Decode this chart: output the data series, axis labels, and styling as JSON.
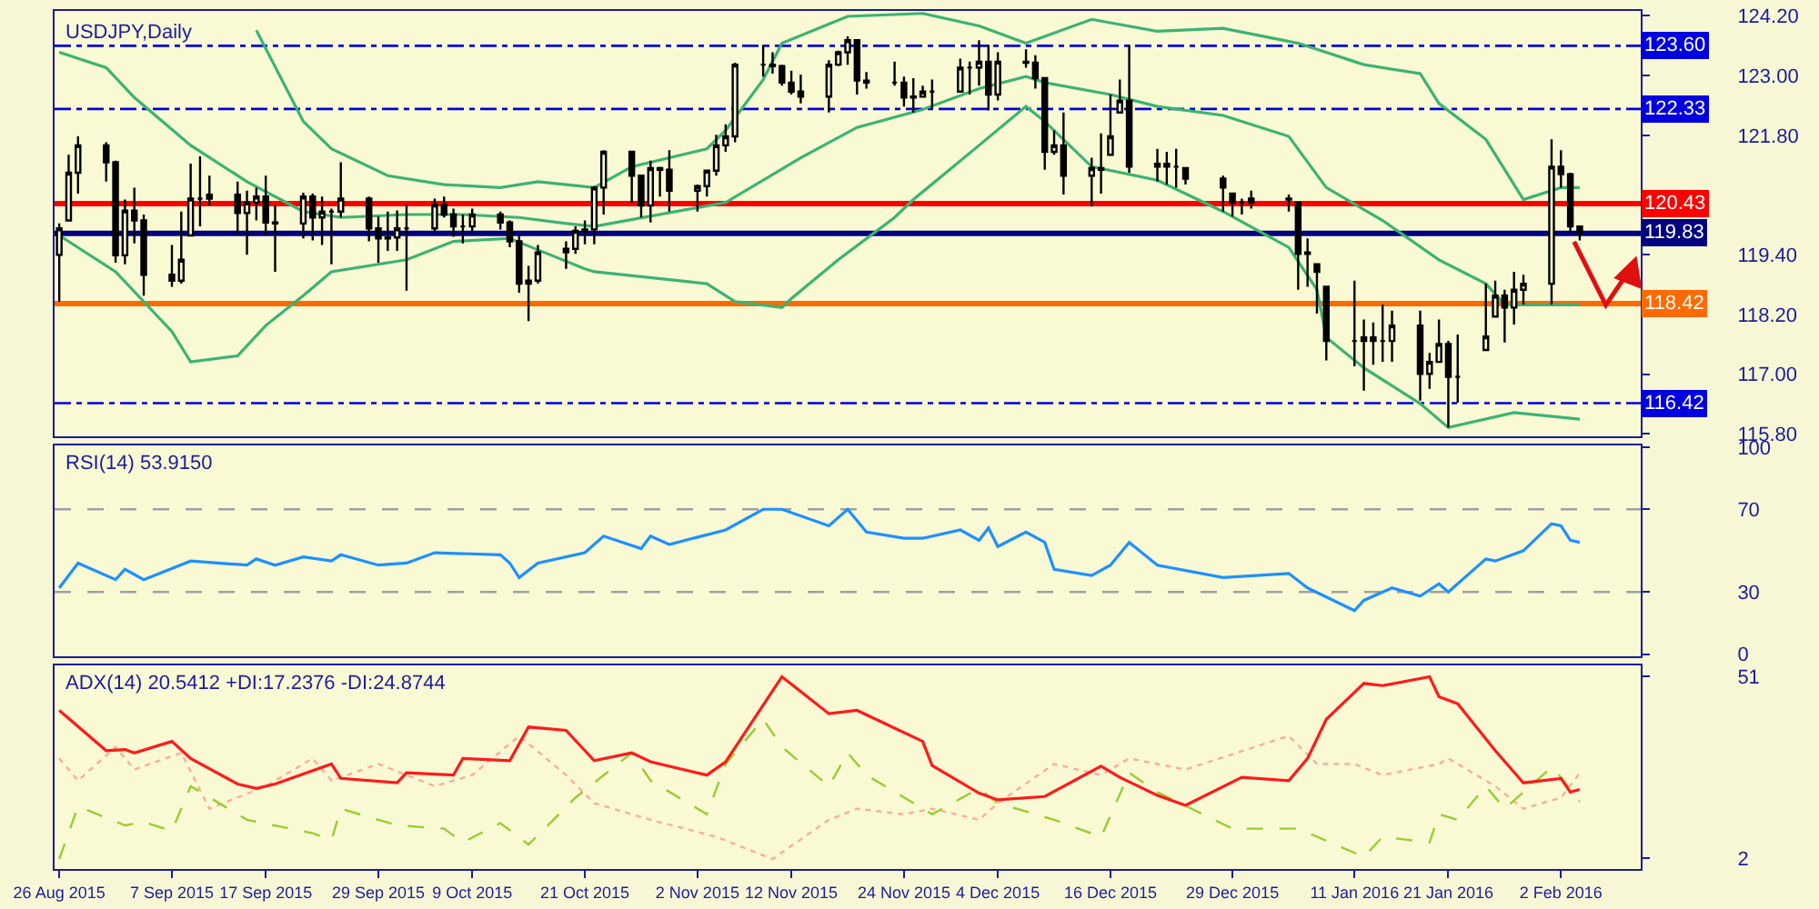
{
  "chart_data": [
    {
      "type": "candlestick",
      "title": "USDJPY,Daily",
      "color": "#000000",
      "x": [
        "2015-08-26",
        "2015-08-27",
        "2015-08-28",
        "2015-08-31",
        "2015-09-01",
        "2015-09-02",
        "2015-09-03",
        "2015-09-04",
        "2015-09-07",
        "2015-09-08",
        "2015-09-09",
        "2015-09-10",
        "2015-09-11",
        "2015-09-14",
        "2015-09-15",
        "2015-09-16",
        "2015-09-17",
        "2015-09-18",
        "2015-09-21",
        "2015-09-22",
        "2015-09-23",
        "2015-09-24",
        "2015-09-25",
        "2015-09-28",
        "2015-09-29",
        "2015-09-30",
        "2015-10-01",
        "2015-10-02",
        "2015-10-05",
        "2015-10-06",
        "2015-10-07",
        "2015-10-08",
        "2015-10-09",
        "2015-10-12",
        "2015-10-13",
        "2015-10-14",
        "2015-10-15",
        "2015-10-16",
        "2015-10-19",
        "2015-10-20",
        "2015-10-21",
        "2015-10-22",
        "2015-10-23",
        "2015-10-26",
        "2015-10-27",
        "2015-10-28",
        "2015-10-29",
        "2015-10-30",
        "2015-11-02",
        "2015-11-03",
        "2015-11-04",
        "2015-11-05",
        "2015-11-06",
        "2015-11-09",
        "2015-11-10",
        "2015-11-11",
        "2015-11-12",
        "2015-11-13",
        "2015-11-16",
        "2015-11-17",
        "2015-11-18",
        "2015-11-19",
        "2015-11-20",
        "2015-11-23",
        "2015-11-24",
        "2015-11-25",
        "2015-11-26",
        "2015-11-27",
        "2015-11-30",
        "2015-12-01",
        "2015-12-02",
        "2015-12-03",
        "2015-12-04",
        "2015-12-07",
        "2015-12-08",
        "2015-12-09",
        "2015-12-10",
        "2015-12-11",
        "2015-12-14",
        "2015-12-15",
        "2015-12-16",
        "2015-12-17",
        "2015-12-18",
        "2015-12-21",
        "2015-12-22",
        "2015-12-23",
        "2015-12-24",
        "2015-12-28",
        "2015-12-29",
        "2015-12-30",
        "2015-12-31",
        "2016-01-04",
        "2016-01-05",
        "2016-01-06",
        "2016-01-07",
        "2016-01-08",
        "2016-01-11",
        "2016-01-12",
        "2016-01-13",
        "2016-01-14",
        "2016-01-15",
        "2016-01-18",
        "2016-01-19",
        "2016-01-20",
        "2016-01-21",
        "2016-01-22",
        "2016-01-25",
        "2016-01-26",
        "2016-01-27",
        "2016-01-28",
        "2016-01-29",
        "2016-02-01",
        "2016-02-02",
        "2016-02-03",
        "2016-02-04"
      ],
      "ohlc": [
        [
          119.4,
          120.03,
          118.46,
          119.93
        ],
        [
          120.09,
          121.41,
          120.09,
          121.05
        ],
        [
          121.05,
          121.78,
          120.63,
          121.6
        ],
        [
          121.6,
          121.66,
          120.87,
          121.26
        ],
        [
          121.26,
          121.29,
          119.24,
          119.39
        ],
        [
          119.39,
          120.51,
          119.21,
          120.29
        ],
        [
          120.29,
          120.75,
          119.63,
          120.09
        ],
        [
          120.09,
          120.21,
          118.58,
          119.0
        ],
        [
          119.0,
          119.6,
          118.76,
          118.88
        ],
        [
          118.88,
          120.27,
          118.82,
          119.3
        ],
        [
          119.79,
          121.23,
          119.79,
          120.53
        ],
        [
          120.53,
          121.38,
          119.97,
          120.53
        ],
        [
          120.53,
          120.99,
          120.39,
          120.61
        ],
        [
          120.61,
          120.87,
          119.81,
          120.24
        ],
        [
          120.24,
          120.69,
          119.4,
          120.45
        ],
        [
          120.45,
          120.75,
          120.09,
          120.57
        ],
        [
          120.57,
          120.99,
          119.79,
          120.05
        ],
        [
          120.05,
          120.39,
          119.06,
          120.03
        ],
        [
          120.03,
          120.65,
          119.73,
          120.57
        ],
        [
          120.57,
          120.63,
          119.69,
          120.15
        ],
        [
          120.15,
          120.57,
          119.6,
          120.27
        ],
        [
          120.27,
          120.33,
          119.21,
          120.27
        ],
        [
          120.27,
          121.26,
          120.15,
          120.53
        ],
        [
          120.53,
          120.57,
          119.67,
          119.93
        ],
        [
          119.93,
          120.17,
          119.24,
          119.73
        ],
        [
          119.73,
          120.27,
          119.48,
          119.75
        ],
        [
          119.75,
          120.29,
          119.48,
          119.93
        ],
        [
          119.93,
          120.41,
          118.68,
          119.93
        ],
        [
          119.93,
          120.53,
          119.88,
          120.41
        ],
        [
          120.41,
          120.57,
          120.15,
          120.21
        ],
        [
          120.21,
          120.33,
          119.76,
          119.97
        ],
        [
          119.97,
          120.21,
          119.63,
          119.97
        ],
        [
          119.97,
          120.33,
          119.85,
          120.21
        ],
        [
          120.21,
          120.27,
          119.91,
          120.05
        ],
        [
          120.05,
          120.09,
          119.55,
          119.67
        ],
        [
          119.67,
          119.79,
          118.64,
          118.82
        ],
        [
          118.82,
          119.18,
          118.07,
          118.88
        ],
        [
          118.88,
          119.6,
          118.82,
          119.45
        ],
        [
          119.45,
          119.67,
          119.12,
          119.52
        ],
        [
          119.52,
          119.97,
          119.42,
          119.88
        ],
        [
          119.88,
          120.09,
          119.61,
          119.91
        ],
        [
          119.91,
          120.78,
          119.61,
          120.75
        ],
        [
          120.75,
          121.5,
          120.21,
          121.47
        ],
        [
          121.47,
          121.47,
          120.45,
          120.99
        ],
        [
          120.99,
          120.99,
          120.15,
          120.39
        ],
        [
          120.39,
          121.29,
          120.05,
          121.14
        ],
        [
          121.14,
          121.17,
          120.57,
          121.11
        ],
        [
          121.11,
          121.5,
          120.27,
          120.69
        ],
        [
          120.69,
          120.81,
          120.27,
          120.78
        ],
        [
          120.78,
          121.11,
          120.57,
          121.09
        ],
        [
          121.09,
          121.81,
          120.99,
          121.6
        ],
        [
          121.6,
          122.02,
          121.47,
          121.78
        ],
        [
          121.78,
          123.26,
          121.66,
          123.22
        ],
        [
          123.22,
          123.62,
          122.98,
          123.22
        ],
        [
          123.22,
          123.47,
          123.04,
          123.19
        ],
        [
          123.19,
          123.22,
          122.8,
          122.86
        ],
        [
          122.86,
          123.1,
          122.62,
          122.68
        ],
        [
          122.68,
          123.02,
          122.44,
          122.58
        ],
        [
          122.58,
          123.31,
          122.26,
          123.22
        ],
        [
          123.22,
          123.5,
          123.19,
          123.47
        ],
        [
          123.47,
          123.79,
          123.22,
          123.71
        ],
        [
          123.71,
          123.71,
          122.62,
          122.9
        ],
        [
          122.9,
          123.07,
          122.74,
          122.86
        ],
        [
          122.86,
          123.28,
          122.8,
          122.86
        ],
        [
          122.86,
          122.98,
          122.38,
          122.56
        ],
        [
          122.56,
          122.95,
          122.26,
          122.58
        ],
        [
          122.58,
          122.8,
          122.56,
          122.68
        ],
        [
          122.68,
          122.92,
          122.34,
          122.68
        ],
        [
          122.68,
          123.34,
          122.68,
          123.16
        ],
        [
          123.16,
          123.28,
          122.62,
          123.16
        ],
        [
          123.16,
          123.71,
          122.8,
          123.28
        ],
        [
          123.28,
          123.62,
          122.3,
          122.62
        ],
        [
          122.62,
          123.47,
          122.5,
          123.28
        ],
        [
          123.28,
          123.53,
          123.16,
          123.26
        ],
        [
          123.26,
          123.41,
          122.74,
          122.95
        ],
        [
          122.95,
          122.95,
          121.11,
          121.47
        ],
        [
          121.47,
          121.9,
          121.41,
          121.6
        ],
        [
          121.6,
          122.26,
          120.61,
          120.99
        ],
        [
          120.99,
          121.35,
          120.37,
          121.14
        ],
        [
          121.14,
          121.84,
          120.63,
          121.11
        ],
        [
          121.41,
          122.62,
          121.41,
          121.78
        ],
        [
          122.26,
          122.92,
          122.26,
          122.5
        ],
        [
          122.5,
          123.62,
          121.05,
          121.17
        ],
        [
          121.17,
          121.53,
          120.87,
          121.23
        ],
        [
          121.23,
          121.47,
          120.81,
          121.17
        ],
        [
          121.17,
          121.53,
          120.75,
          121.17
        ],
        [
          121.14,
          121.14,
          120.81,
          120.93
        ],
        [
          120.93,
          120.99,
          120.27,
          120.75
        ],
        [
          120.63,
          120.63,
          120.17,
          120.45
        ],
        [
          120.45,
          120.53,
          120.21,
          120.45
        ],
        [
          120.45,
          120.69,
          120.33,
          120.53
        ],
        [
          120.53,
          120.61,
          120.27,
          120.51
        ],
        [
          120.45,
          120.45,
          118.7,
          119.42
        ],
        [
          119.42,
          119.73,
          118.76,
          119.45
        ],
        [
          119.21,
          119.21,
          118.22,
          119.06
        ],
        [
          118.76,
          118.76,
          117.28,
          117.67
        ],
        [
          117.67,
          118.88,
          117.16,
          117.67
        ],
        [
          117.67,
          118.1,
          116.67,
          117.74
        ],
        [
          117.74,
          118.04,
          117.19,
          117.67
        ],
        [
          117.67,
          118.4,
          117.25,
          117.67
        ],
        [
          117.67,
          118.28,
          117.25,
          117.98
        ],
        [
          117.98,
          118.28,
          116.47,
          117.01
        ],
        [
          117.01,
          117.43,
          116.71,
          117.25
        ],
        [
          117.25,
          118.1,
          117.23,
          117.61
        ],
        [
          117.61,
          117.67,
          115.93,
          116.95
        ],
        [
          116.95,
          117.8,
          116.43,
          116.95
        ],
        [
          117.49,
          118.82,
          117.49,
          117.76
        ],
        [
          118.16,
          118.88,
          118.16,
          118.58
        ],
        [
          118.58,
          118.7,
          117.64,
          118.34
        ],
        [
          118.34,
          119.06,
          118.0,
          118.7
        ],
        [
          118.7,
          119.0,
          118.4,
          118.82
        ],
        [
          118.82,
          121.72,
          118.4,
          121.17
        ],
        [
          121.17,
          121.5,
          120.75,
          121.02
        ],
        [
          121.02,
          121.05,
          119.85,
          119.97
        ],
        [
          119.97,
          119.97,
          119.69,
          119.83
        ]
      ],
      "series": [
        {
          "type": "line",
          "color": "#3cb371",
          "x": [
            "2015-09-16",
            "2015-09-21",
            "2015-09-24",
            "2015-09-30",
            "2015-10-06",
            "2015-10-12",
            "2015-10-16",
            "2015-10-22",
            "2015-10-26",
            "2015-11-03",
            "2015-11-05",
            "2015-11-09",
            "2015-11-11",
            "2015-11-18",
            "2015-11-26",
            "2015-12-02",
            "2015-12-07",
            "2015-12-14",
            "2015-12-21",
            "2015-12-28",
            "2016-01-05",
            "2016-01-12",
            "2016-01-18",
            "2016-01-20",
            "2016-01-25",
            "2016-01-29",
            "2016-02-02",
            "2016-02-04"
          ],
          "values": [
            123.91,
            122.08,
            121.53,
            120.99,
            120.81,
            120.75,
            120.87,
            120.75,
            121.17,
            121.53,
            121.9,
            122.92,
            123.65,
            124.19,
            124.25,
            124.0,
            123.65,
            124.13,
            123.89,
            123.95,
            123.65,
            123.22,
            123.04,
            122.44,
            121.72,
            120.51,
            120.75,
            120.75
          ]
        },
        {
          "type": "line",
          "color": "#3cb371",
          "x": [
            "2015-08-26",
            "2015-08-31",
            "2015-09-03",
            "2015-09-09",
            "2015-09-15",
            "2015-09-21",
            "2015-09-25",
            "2015-10-02",
            "2015-10-08",
            "2015-10-14",
            "2015-10-19",
            "2015-10-22",
            "2015-11-05",
            "2015-11-13",
            "2015-11-19",
            "2015-11-26",
            "2015-12-02",
            "2015-12-07",
            "2015-12-09",
            "2015-12-16",
            "2015-12-21",
            "2015-12-28",
            "2016-01-04",
            "2016-01-08",
            "2016-01-14",
            "2016-01-20",
            "2016-01-25",
            "2016-01-27",
            "2016-02-04"
          ],
          "values": [
            123.47,
            123.16,
            122.56,
            121.6,
            120.87,
            120.27,
            120.15,
            120.21,
            120.21,
            120.15,
            120.03,
            119.97,
            120.45,
            121.35,
            121.96,
            122.32,
            122.74,
            122.98,
            122.86,
            122.62,
            122.38,
            122.2,
            121.78,
            120.75,
            120.09,
            119.3,
            118.82,
            118.4,
            118.4
          ]
        },
        {
          "type": "line",
          "color": "#3cb371",
          "x": [
            "2015-08-26",
            "2015-09-01",
            "2015-09-07",
            "2015-09-09",
            "2015-09-14",
            "2015-09-17",
            "2015-09-21",
            "2015-09-24",
            "2015-10-02",
            "2015-10-07",
            "2015-10-13",
            "2015-10-16",
            "2015-10-21",
            "2015-10-22",
            "2015-11-03",
            "2015-11-06",
            "2015-11-11",
            "2015-11-12",
            "2015-11-17",
            "2015-11-23",
            "2015-11-25",
            "2015-12-02",
            "2015-12-07",
            "2015-12-09",
            "2015-12-14",
            "2015-12-21",
            "2015-12-28",
            "2016-01-04",
            "2016-01-07",
            "2016-01-08",
            "2016-01-12",
            "2016-01-18",
            "2016-01-21",
            "2016-01-28",
            "2016-02-04"
          ],
          "values": [
            119.79,
            119.06,
            117.86,
            117.25,
            117.37,
            117.98,
            118.58,
            119.06,
            119.3,
            119.67,
            119.73,
            119.5,
            119.12,
            119.06,
            118.82,
            118.46,
            118.34,
            118.52,
            119.3,
            120.15,
            120.51,
            121.6,
            122.38,
            122.08,
            121.17,
            120.9,
            120.27,
            119.55,
            118.7,
            117.74,
            117.13,
            116.41,
            115.93,
            116.23,
            116.1
          ]
        }
      ],
      "ref_lines": [
        {
          "axis": "y",
          "value": 123.6,
          "label": "123.60",
          "color": "#0000e0",
          "line_style": "dashed"
        },
        {
          "axis": "y",
          "value": 122.33,
          "label": "122.33",
          "color": "#0000e0",
          "line_style": "dashed"
        },
        {
          "axis": "y",
          "value": 120.43,
          "label": "120.43",
          "color": "#ff0000",
          "line_style": "solid"
        },
        {
          "axis": "y",
          "value": 119.83,
          "label": "119.83",
          "color": "#000080",
          "line_style": "solid"
        },
        {
          "axis": "y",
          "value": 118.42,
          "label": "118.42",
          "color": "#ff6a00",
          "line_style": "solid"
        },
        {
          "axis": "y",
          "value": 116.42,
          "label": "116.42",
          "color": "#0000e0",
          "line_style": "dashed"
        }
      ],
      "xlim": [
        "2015-08-25T12:00",
        "2016-02-10T12:00"
      ],
      "ylim": [
        115.75,
        124.3
      ],
      "yticks": [
        {
          "value": 115.8,
          "label": "115.80"
        },
        {
          "value": 117.0,
          "label": "117.00"
        },
        {
          "value": 118.2,
          "label": "118.20"
        },
        {
          "value": 119.4,
          "label": "119.40"
        },
        {
          "value": 121.8,
          "label": "121.80"
        },
        {
          "value": 123.0,
          "label": "123.00"
        },
        {
          "value": 124.2,
          "label": "124.20"
        }
      ],
      "tick_labels": "y",
      "grid": false,
      "marker": "none"
    },
    {
      "type": "line",
      "title": "RSI(14) 53.9150",
      "series": [
        {
          "color": "#1e90ff",
          "line_style": "solid",
          "x": [
            "2015-08-26",
            "2015-08-28",
            "2015-09-01",
            "2015-09-02",
            "2015-09-04",
            "2015-09-09",
            "2015-09-15",
            "2015-09-16",
            "2015-09-18",
            "2015-09-21",
            "2015-09-24",
            "2015-09-25",
            "2015-09-29",
            "2015-10-02",
            "2015-10-05",
            "2015-10-12",
            "2015-10-13",
            "2015-10-14",
            "2015-10-16",
            "2015-10-21",
            "2015-10-23",
            "2015-10-27",
            "2015-10-28",
            "2015-10-30",
            "2015-11-05",
            "2015-11-09",
            "2015-11-11",
            "2015-11-16",
            "2015-11-18",
            "2015-11-20",
            "2015-11-24",
            "2015-11-26",
            "2015-11-30",
            "2015-12-02",
            "2015-12-03",
            "2015-12-04",
            "2015-12-07",
            "2015-12-09",
            "2015-12-10",
            "2015-12-14",
            "2015-12-16",
            "2015-12-18",
            "2015-12-21",
            "2015-12-28",
            "2016-01-04",
            "2016-01-06",
            "2016-01-11",
            "2016-01-12",
            "2016-01-15",
            "2016-01-18",
            "2016-01-20",
            "2016-01-21",
            "2016-01-25",
            "2016-01-26",
            "2016-01-29",
            "2016-02-01",
            "2016-02-02",
            "2016-02-03",
            "2016-02-04"
          ],
          "values": [
            32,
            44,
            36,
            41,
            36,
            45,
            43,
            46,
            43,
            47,
            45,
            48,
            43,
            44,
            49,
            48,
            44,
            37,
            44,
            49,
            57,
            51,
            57,
            53,
            60,
            70,
            70,
            62,
            70,
            59,
            56,
            56,
            60,
            55,
            61,
            52,
            59,
            54,
            41,
            38,
            43,
            54,
            43,
            37,
            39,
            32,
            21,
            26,
            32,
            28,
            34,
            30,
            46,
            45,
            50,
            63,
            62,
            55,
            54
          ]
        }
      ],
      "ref_lines": [
        {
          "axis": "y",
          "value": 30,
          "color": "#a0a0a0",
          "line_style": "dotted"
        },
        {
          "axis": "y",
          "value": 70,
          "color": "#a0a0a0",
          "line_style": "dotted"
        }
      ],
      "xlim": [
        "2015-08-25T12:00",
        "2016-02-10T12:00"
      ],
      "ylim": [
        -1,
        101
      ],
      "yticks": [
        0,
        30,
        70,
        100
      ],
      "tick_labels": "y",
      "grid": false,
      "marker": "none"
    },
    {
      "type": "line",
      "title": "ADX(14) 20.5412 +DI:17.2376 -DI:24.8744",
      "series": [
        {
          "color": "#f5b09a",
          "line_style": "dotted",
          "x": [
            "2015-08-26",
            "2015-08-28",
            "2015-09-01",
            "2015-09-03",
            "2015-09-08",
            "2015-09-11",
            "2015-09-17",
            "2015-09-22",
            "2015-09-24",
            "2015-09-29",
            "2015-10-05",
            "2015-10-09",
            "2015-10-14",
            "2015-10-19",
            "2015-10-22",
            "2015-10-28",
            "2015-11-04",
            "2015-11-10",
            "2015-11-16",
            "2015-11-19",
            "2015-11-24",
            "2015-11-27",
            "2015-12-02",
            "2015-12-04",
            "2015-12-10",
            "2015-12-15",
            "2015-12-18",
            "2015-12-24",
            "2016-01-04",
            "2016-01-07",
            "2016-01-11",
            "2016-01-14",
            "2016-01-20",
            "2016-01-21",
            "2016-01-26",
            "2016-01-29",
            "2016-02-02",
            "2016-02-04"
          ],
          "values": [
            28.9,
            22.9,
            32.0,
            25.9,
            30.4,
            15.3,
            21.4,
            28.9,
            22.9,
            27.4,
            21.4,
            24.4,
            35.0,
            24.4,
            16.8,
            12.3,
            7.7,
            1.7,
            12.3,
            15.3,
            13.8,
            15.3,
            12.3,
            16.8,
            27.4,
            24.4,
            28.9,
            25.9,
            35.0,
            27.4,
            27.4,
            24.4,
            27.4,
            28.9,
            21.4,
            15.3,
            18.3,
            24.9
          ]
        },
        {
          "color": "#9acd32",
          "line_style": "dashed",
          "x": [
            "2015-08-26",
            "2015-08-28",
            "2015-09-02",
            "2015-09-04",
            "2015-09-07",
            "2015-09-09",
            "2015-09-15",
            "2015-09-22",
            "2015-09-24",
            "2015-09-25",
            "2015-10-01",
            "2015-10-06",
            "2015-10-08",
            "2015-10-12",
            "2015-10-15",
            "2015-10-20",
            "2015-10-26",
            "2015-10-28",
            "2015-11-03",
            "2015-11-05",
            "2015-11-09",
            "2015-11-11",
            "2015-11-16",
            "2015-11-18",
            "2015-11-20",
            "2015-11-27",
            "2015-12-02",
            "2015-12-04",
            "2015-12-10",
            "2015-12-15",
            "2015-12-18",
            "2015-12-21",
            "2015-12-29",
            "2016-01-05",
            "2016-01-12",
            "2016-01-14",
            "2016-01-19",
            "2016-01-20",
            "2016-01-22",
            "2016-01-25",
            "2016-01-27",
            "2016-02-01",
            "2016-02-02",
            "2016-02-04"
          ],
          "values": [
            1.7,
            15.9,
            10.8,
            11.7,
            9.3,
            21.4,
            12.3,
            8.7,
            6.8,
            15.3,
            10.8,
            9.9,
            6.2,
            11.4,
            5.6,
            18.3,
            30.4,
            22.9,
            13.8,
            27.4,
            39.5,
            32.0,
            21.4,
            30.4,
            24.4,
            13.8,
            20.8,
            16.8,
            12.3,
            7.7,
            25.0,
            19.8,
            9.9,
            9.9,
            2.3,
            7.7,
            6.2,
            13.8,
            12.3,
            21.4,
            15.3,
            26.5,
            23.8,
            17.2
          ]
        },
        {
          "color": "#ff1a1a",
          "line_style": "solid",
          "x": [
            "2015-08-26",
            "2015-08-31",
            "2015-09-02",
            "2015-09-03",
            "2015-09-07",
            "2015-09-09",
            "2015-09-14",
            "2015-09-16",
            "2015-09-18",
            "2015-09-24",
            "2015-09-25",
            "2015-10-01",
            "2015-10-02",
            "2015-10-07",
            "2015-10-08",
            "2015-10-13",
            "2015-10-15",
            "2015-10-19",
            "2015-10-22",
            "2015-10-26",
            "2015-10-28",
            "2015-11-03",
            "2015-11-05",
            "2015-11-11",
            "2015-11-16",
            "2015-11-19",
            "2015-11-23",
            "2015-11-26",
            "2015-11-27",
            "2015-12-02",
            "2015-12-04",
            "2015-12-09",
            "2015-12-15",
            "2015-12-17",
            "2015-12-21",
            "2015-12-24",
            "2015-12-30",
            "2016-01-04",
            "2016-01-06",
            "2016-01-08",
            "2016-01-12",
            "2016-01-14",
            "2016-01-19",
            "2016-01-20",
            "2016-01-22",
            "2016-01-26",
            "2016-01-29",
            "2016-02-02",
            "2016-02-03",
            "2016-02-04"
          ],
          "values": [
            41.9,
            31.0,
            31.3,
            30.4,
            33.5,
            28.9,
            22.0,
            20.8,
            22.0,
            27.4,
            23.5,
            22.3,
            25.0,
            24.4,
            28.9,
            28.3,
            37.4,
            36.5,
            28.3,
            30.4,
            28.0,
            24.4,
            28.0,
            51.0,
            41.0,
            41.9,
            37.1,
            33.5,
            27.0,
            19.5,
            17.7,
            18.6,
            26.8,
            23.8,
            18.9,
            16.2,
            23.8,
            22.9,
            28.9,
            39.5,
            49.2,
            48.6,
            51.0,
            45.6,
            43.7,
            31.0,
            22.3,
            23.5,
            19.8,
            20.5
          ]
        }
      ],
      "xlim": [
        "2015-08-25T12:00",
        "2016-02-10T12:00"
      ],
      "xticks": [
        {
          "value": "2015-08-26",
          "label": "26 Aug 2015"
        },
        {
          "value": "2015-09-07",
          "label": "7 Sep 2015"
        },
        {
          "value": "2015-09-17",
          "label": "17 Sep 2015"
        },
        {
          "value": "2015-09-29",
          "label": "29 Sep 2015"
        },
        {
          "value": "2015-10-09",
          "label": "9 Oct 2015"
        },
        {
          "value": "2015-10-21",
          "label": "21 Oct 2015"
        },
        {
          "value": "2015-11-02",
          "label": "2 Nov 2015"
        },
        {
          "value": "2015-11-12",
          "label": "12 Nov 2015"
        },
        {
          "value": "2015-11-24",
          "label": "24 Nov 2015"
        },
        {
          "value": "2015-12-04",
          "label": "4 Dec 2015"
        },
        {
          "value": "2015-12-16",
          "label": "16 Dec 2015"
        },
        {
          "value": "2015-12-29",
          "label": "29 Dec 2015"
        },
        {
          "value": "2016-01-11",
          "label": "11 Jan 2016"
        },
        {
          "value": "2016-01-21",
          "label": "21 Jan 2016"
        },
        {
          "value": "2016-02-02",
          "label": "2 Feb 2016"
        }
      ],
      "ylim": [
        -1,
        54
      ],
      "yticks": [
        2,
        51
      ],
      "grid": false,
      "marker": "none"
    }
  ]
}
